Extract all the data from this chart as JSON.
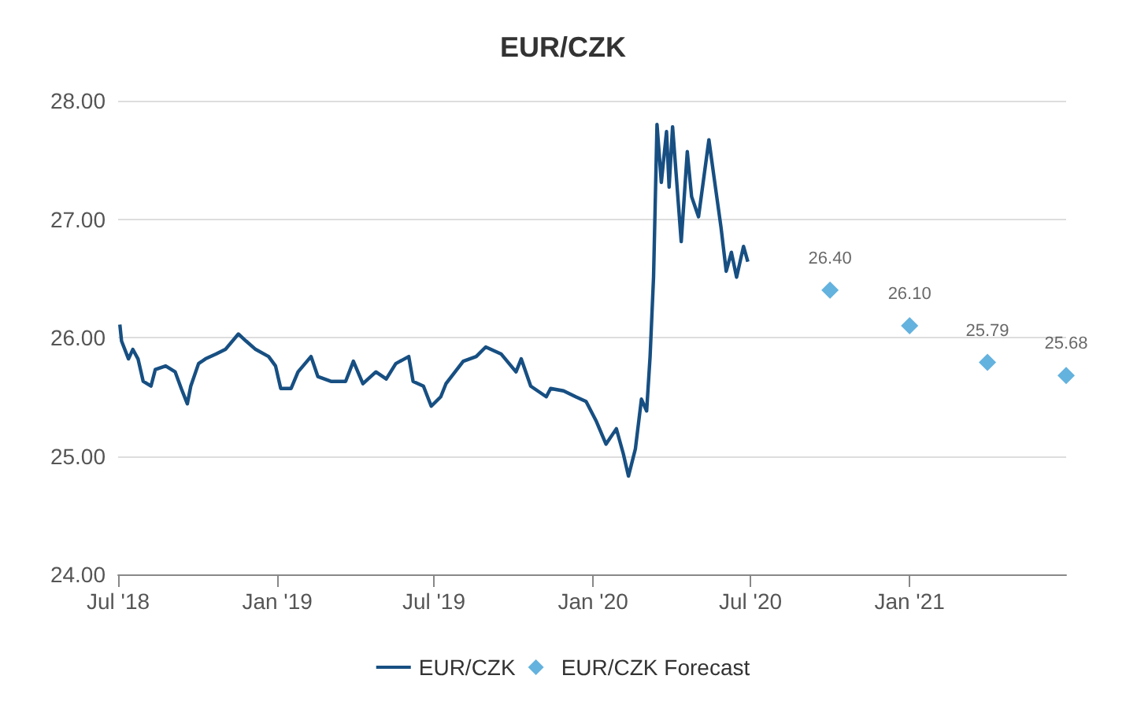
{
  "chart_data": {
    "type": "line",
    "title": "EUR/CZK",
    "xlim": [
      "2018-07-01",
      "2021-07-01"
    ],
    "xticks": [
      {
        "value": "2018-07-01",
        "label": "Jul '18"
      },
      {
        "value": "2019-01-01",
        "label": "Jan '19"
      },
      {
        "value": "2019-07-01",
        "label": "Jul '19"
      },
      {
        "value": "2020-01-01",
        "label": "Jan '20"
      },
      {
        "value": "2020-07-01",
        "label": "Jul '20"
      },
      {
        "value": "2021-01-01",
        "label": "Jan '21"
      }
    ],
    "ylim": [
      24,
      28
    ],
    "yticks": [
      {
        "value": 24,
        "label": "24.00"
      },
      {
        "value": 25,
        "label": "25.00"
      },
      {
        "value": 26,
        "label": "26.00"
      },
      {
        "value": 27,
        "label": "27.00"
      },
      {
        "value": 28,
        "label": "28.00"
      }
    ],
    "grid": "y",
    "legend": "bottom",
    "line_style": "solid",
    "series": [
      {
        "name": "EUR/CZK",
        "marker": "none",
        "color": "#174f82",
        "x": [
          "2018-07-03",
          "2018-07-05",
          "2018-07-13",
          "2018-07-18",
          "2018-07-24",
          "2018-07-30",
          "2018-08-08",
          "2018-08-13",
          "2018-08-25",
          "2018-09-05",
          "2018-09-12",
          "2018-09-19",
          "2018-09-23",
          "2018-10-02",
          "2018-10-10",
          "2018-10-22",
          "2018-11-02",
          "2018-11-17",
          "2018-11-26",
          "2018-12-07",
          "2018-12-22",
          "2018-12-30",
          "2019-01-05",
          "2019-01-17",
          "2019-01-25",
          "2019-02-09",
          "2019-02-17",
          "2019-03-04",
          "2019-03-21",
          "2019-03-30",
          "2019-04-10",
          "2019-04-25",
          "2019-05-07",
          "2019-05-18",
          "2019-06-02",
          "2019-06-07",
          "2019-06-19",
          "2019-06-28",
          "2019-07-09",
          "2019-07-15",
          "2019-08-04",
          "2019-08-19",
          "2019-08-30",
          "2019-09-17",
          "2019-10-04",
          "2019-10-10",
          "2019-10-21",
          "2019-11-08",
          "2019-11-13",
          "2019-11-28",
          "2019-12-12",
          "2019-12-24",
          "2020-01-05",
          "2020-01-16",
          "2020-01-28",
          "2020-02-05",
          "2020-02-11",
          "2020-02-19",
          "2020-02-26",
          "2020-03-03",
          "2020-03-07",
          "2020-03-11",
          "2020-03-15",
          "2020-03-20",
          "2020-03-26",
          "2020-03-29",
          "2020-04-02",
          "2020-04-12",
          "2020-04-19",
          "2020-04-24",
          "2020-05-02",
          "2020-05-14",
          "2020-05-20",
          "2020-05-28",
          "2020-06-03",
          "2020-06-09",
          "2020-06-15",
          "2020-06-23",
          "2020-06-28"
        ],
        "values": [
          26.11,
          25.97,
          25.82,
          25.9,
          25.82,
          25.63,
          25.59,
          25.73,
          25.76,
          25.71,
          25.57,
          25.44,
          25.59,
          25.78,
          25.82,
          25.86,
          25.9,
          26.03,
          25.97,
          25.9,
          25.84,
          25.76,
          25.57,
          25.57,
          25.71,
          25.84,
          25.67,
          25.63,
          25.63,
          25.8,
          25.61,
          25.71,
          25.65,
          25.78,
          25.84,
          25.63,
          25.59,
          25.42,
          25.5,
          25.61,
          25.8,
          25.84,
          25.92,
          25.86,
          25.71,
          25.82,
          25.59,
          25.5,
          25.57,
          25.55,
          25.5,
          25.46,
          25.29,
          25.1,
          25.23,
          25.02,
          24.83,
          25.06,
          25.48,
          25.38,
          25.84,
          26.51,
          27.8,
          27.31,
          27.74,
          27.27,
          27.78,
          26.81,
          27.57,
          27.19,
          27.02,
          27.67,
          27.35,
          26.93,
          26.56,
          26.72,
          26.51,
          26.77,
          26.64
        ]
      },
      {
        "name": "EUR/CZK Forecast",
        "type": "scatter",
        "marker": "diamond",
        "color": "#3d9fd6",
        "x": [
          "2020-10-01",
          "2021-01-01",
          "2021-04-01",
          "2021-07-01"
        ],
        "values": [
          26.4,
          26.1,
          25.79,
          25.68
        ],
        "value_labels": [
          "26.40",
          "26.10",
          "25.79",
          "25.68"
        ]
      }
    ]
  }
}
